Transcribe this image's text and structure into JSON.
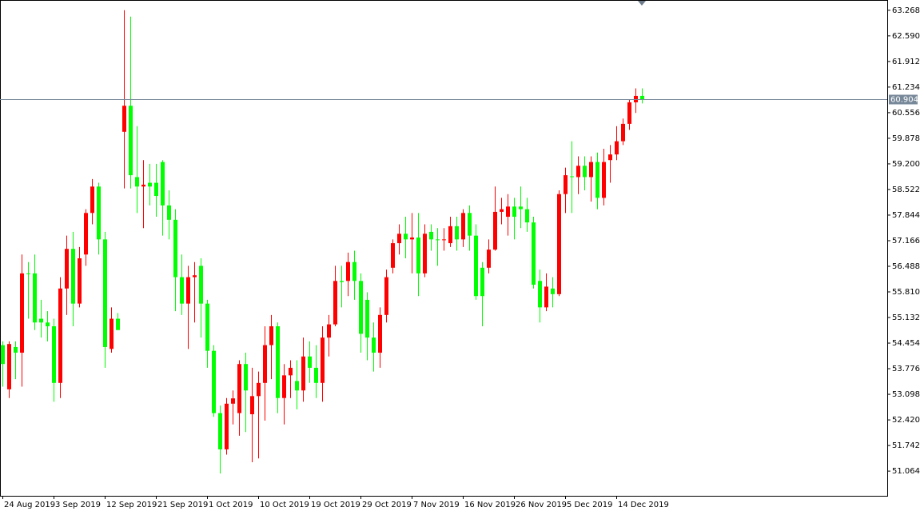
{
  "chart_data": {
    "type": "candlestick",
    "categories": [
      "24 Aug 2019",
      null,
      null,
      null,
      null,
      null,
      null,
      null,
      "3 Sep 2019",
      null,
      null,
      null,
      null,
      null,
      null,
      null,
      "12 Sep 2019",
      null,
      null,
      null,
      null,
      null,
      null,
      null,
      "21 Sep 2019",
      null,
      null,
      null,
      null,
      null,
      null,
      null,
      "1 Oct 2019",
      null,
      null,
      null,
      null,
      null,
      null,
      null,
      "10 Oct 2019",
      null,
      null,
      null,
      null,
      null,
      null,
      null,
      "19 Oct 2019",
      null,
      null,
      null,
      null,
      null,
      null,
      null,
      "29 Oct 2019",
      null,
      null,
      null,
      null,
      null,
      null,
      null,
      "7 Nov 2019",
      null,
      null,
      null,
      null,
      null,
      null,
      null,
      "16 Nov 2019",
      null,
      null,
      null,
      null,
      null,
      null,
      null,
      "26 Nov 2019",
      null,
      null,
      null,
      null,
      null,
      null,
      null,
      "5 Dec 2019",
      null,
      null,
      null,
      null,
      null,
      null,
      null,
      "14 Dec 2019",
      null,
      null,
      null,
      null
    ],
    "open": [
      54.4,
      53.23,
      54.35,
      54.2,
      56.3,
      56.3,
      55.1,
      55.0,
      54.9,
      53.4,
      55.9,
      56.95,
      55.5,
      56.8,
      57.9,
      58.6,
      57.2,
      54.3,
      55.1,
      60.05,
      60.74,
      58.85,
      58.6,
      58.7,
      58.7,
      59.25,
      58.1,
      57.72,
      56.2,
      55.5,
      56.2,
      56.5,
      55.5,
      54.25,
      52.6,
      51.64,
      52.85,
      52.6,
      53.9,
      52.57,
      53.05,
      53.4,
      54.4,
      54.9,
      53.0,
      53.6,
      53.45,
      53.2,
      54.1,
      53.8,
      53.4,
      54.6,
      54.95,
      56.1,
      56.1,
      56.6,
      56.1,
      55.6,
      54.6,
      54.2,
      55.2,
      56.45,
      57.1,
      57.35,
      57.2,
      57.25,
      56.3,
      57.4,
      57.2,
      57.18,
      57.1,
      57.55,
      57.2,
      57.9,
      57.3,
      56.45,
      56.45,
      56.93,
      57.93,
      57.8,
      58.07,
      58.07,
      58.0,
      57.65,
      56.1,
      55.4,
      55.9,
      55.75,
      58.4,
      58.87,
      58.85,
      59.15,
      58.85,
      59.25,
      58.3,
      59.3,
      59.45,
      59.8,
      60.26,
      60.83,
      61.0
    ],
    "high": [
      54.5,
      54.5,
      54.5,
      56.8,
      56.6,
      56.8,
      55.6,
      55.3,
      55.1,
      56.2,
      57.3,
      57.4,
      57.0,
      58.0,
      58.8,
      58.7,
      57.4,
      55.4,
      55.25,
      63.27,
      63.1,
      60.2,
      59.3,
      59.2,
      59.2,
      59.3,
      58.5,
      58.0,
      56.8,
      56.5,
      56.6,
      56.7,
      55.6,
      54.4,
      52.8,
      53.0,
      53.2,
      54.0,
      54.2,
      53.8,
      53.7,
      54.9,
      55.2,
      55.0,
      53.9,
      54.0,
      54.0,
      54.6,
      54.5,
      54.4,
      54.9,
      55.2,
      56.5,
      56.5,
      56.85,
      56.9,
      56.3,
      55.8,
      55.0,
      55.4,
      56.4,
      57.2,
      57.6,
      57.8,
      57.9,
      57.9,
      57.6,
      57.6,
      57.5,
      57.5,
      57.8,
      57.8,
      58.0,
      58.1,
      57.6,
      56.6,
      57.2,
      58.6,
      58.3,
      58.4,
      58.3,
      58.6,
      58.3,
      57.8,
      56.4,
      56.3,
      56.2,
      58.5,
      59.1,
      59.8,
      59.4,
      59.4,
      59.4,
      59.5,
      59.6,
      59.7,
      60.2,
      60.4,
      60.9,
      61.2,
      61.2
    ],
    "low": [
      53.3,
      53.0,
      53.5,
      53.3,
      55.1,
      54.8,
      54.6,
      54.5,
      52.9,
      53.0,
      55.2,
      54.9,
      55.4,
      56.5,
      57.6,
      56.8,
      53.8,
      54.2,
      54.8,
      58.55,
      58.55,
      57.9,
      57.5,
      58.1,
      57.8,
      57.3,
      57.2,
      55.3,
      55.2,
      54.3,
      55.0,
      54.6,
      53.8,
      52.5,
      51.0,
      51.5,
      52.3,
      52.0,
      52.1,
      51.3,
      51.4,
      52.4,
      53.5,
      52.6,
      52.3,
      53.0,
      52.7,
      52.9,
      53.4,
      53.0,
      52.9,
      54.1,
      54.9,
      55.4,
      55.7,
      55.6,
      54.2,
      54.0,
      53.7,
      53.8,
      55.0,
      56.3,
      56.8,
      56.7,
      56.3,
      55.7,
      56.2,
      56.9,
      56.5,
      56.9,
      57.0,
      56.9,
      57.0,
      56.9,
      55.6,
      54.9,
      56.3,
      56.9,
      57.6,
      57.3,
      57.2,
      57.5,
      57.4,
      55.9,
      55.0,
      55.3,
      55.4,
      55.7,
      57.9,
      57.9,
      58.4,
      58.5,
      58.2,
      58.0,
      58.1,
      58.7,
      59.3,
      59.7,
      60.1,
      60.55,
      60.8
    ],
    "close": [
      53.9,
      54.43,
      54.2,
      56.3,
      56.3,
      55.0,
      55.0,
      54.9,
      53.4,
      55.9,
      56.95,
      55.5,
      56.7,
      57.9,
      58.6,
      57.2,
      54.35,
      55.1,
      54.8,
      60.74,
      58.9,
      58.6,
      58.65,
      58.6,
      58.35,
      58.1,
      57.72,
      56.2,
      55.5,
      56.2,
      56.25,
      55.5,
      54.25,
      52.6,
      51.64,
      52.85,
      52.99,
      53.9,
      53.2,
      53.05,
      53.4,
      54.4,
      54.9,
      53.0,
      53.6,
      53.8,
      53.2,
      54.1,
      53.8,
      53.4,
      54.6,
      54.95,
      56.1,
      56.07,
      56.6,
      56.1,
      54.7,
      54.6,
      54.2,
      55.2,
      56.2,
      57.1,
      57.35,
      57.2,
      57.25,
      56.3,
      57.35,
      57.2,
      57.18,
      57.2,
      57.55,
      57.2,
      57.9,
      57.3,
      55.7,
      55.7,
      56.93,
      57.93,
      58.0,
      58.07,
      57.8,
      58.0,
      57.65,
      56.0,
      55.4,
      55.95,
      55.75,
      58.4,
      58.9,
      58.85,
      59.15,
      58.85,
      59.25,
      58.3,
      59.25,
      59.45,
      59.8,
      60.26,
      60.83,
      61.0,
      60.9
    ],
    "up_color": "#ff0000",
    "down_color": "#00ff00",
    "ylim": [
      50.41,
      63.54
    ],
    "yticks": [
      63.268,
      {
        "value": 62.59,
        "label": "62.590"
      },
      61.912,
      61.234,
      60.556,
      59.878,
      {
        "value": 59.2,
        "label": "59.200"
      },
      58.522,
      57.844,
      57.166,
      56.488,
      {
        "value": 55.81,
        "label": "55.810"
      },
      55.132,
      54.454,
      53.776,
      53.098,
      {
        "value": 52.42,
        "label": "52.420"
      },
      51.742,
      51.064
    ],
    "last_price": 60.904
  }
}
